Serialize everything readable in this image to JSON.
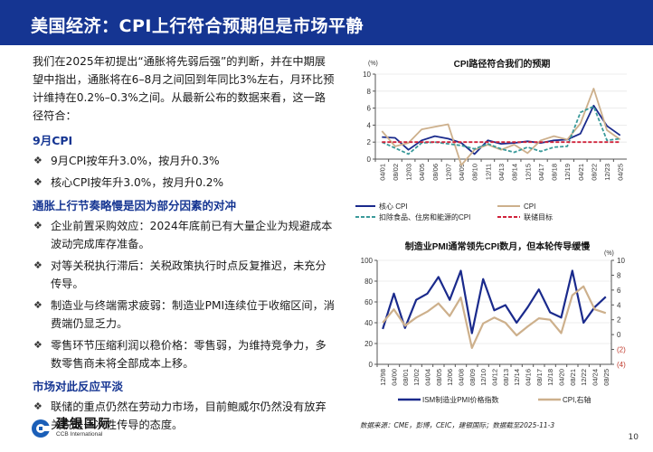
{
  "header": {
    "title": "美国经济：CPI上行符合预期但是市场平静",
    "bg_color": "#153592"
  },
  "left": {
    "intro": "我们在2025年初提出“通胀将先弱后强”的判断，并在中期展望中指出，通胀将在6–8月之间回到年同比3%左右，月环比预计维持在0.2%–0.3%之间。从最新公布的数据来看，这一路径符合：",
    "sections": [
      {
        "heading": "9月CPI",
        "bullets": [
          "9月CPI按年升3.0%，按月升0.3%",
          "核心CPI按年升3.0%，按月升0.2%"
        ]
      },
      {
        "heading": "通胀上行节奏略慢是因为部分因素的对冲",
        "bullets": [
          "企业前置采购效应：2024年底前已有大量企业为规避成本波动完成库存准备。",
          "对等关税执行滞后：关税政策执行时点反复推迟，未充分传导。",
          "制造业与终端需求疲弱：制造业PMI连续位于收缩区间，消费端仍显乏力。",
          "零售环节压缩利润以稳价格：零售弱，为维持竞争力，多数零售商未将全部成本上移。"
        ]
      },
      {
        "heading": "市场对此反应平淡",
        "bullets": [
          "联储的重点仍然在劳动力市场，目前鲍威尔仍然没有放弃关税是一次性传导的态度。"
        ]
      }
    ],
    "bullet_icon": "❖"
  },
  "logo": {
    "cn": "建银国际",
    "en": "CCB International",
    "icon": "ccb-logo-icon"
  },
  "footer": {
    "source": "数据来源：CME，彭博，CEIC，建银国际；数据截至2025-11-3",
    "page_number": "10"
  },
  "chart_data": [
    {
      "type": "line",
      "title": "CPI路径符合我们的预期",
      "ylabel": "(%)",
      "ylim": [
        0,
        10
      ],
      "yticks": [
        "0",
        "2",
        "4",
        "6",
        "8",
        "10"
      ],
      "categories": [
        "04/01",
        "08/02",
        "12/03",
        "04/05",
        "08/06",
        "12/07",
        "04/09",
        "08/10",
        "12/11",
        "04/13",
        "08/14",
        "12/15",
        "04/17",
        "08/18",
        "12/19",
        "04/21",
        "08/22",
        "12/23",
        "04/25"
      ],
      "grid": true,
      "legend_position": "bottom",
      "series": [
        {
          "name": "核心 CPI",
          "color": "#1a2a8c",
          "style": "solid",
          "values": [
            2.6,
            2.5,
            1.1,
            2.2,
            2.7,
            2.4,
            1.9,
            0.6,
            2.2,
            1.8,
            1.9,
            2.1,
            1.9,
            2.2,
            2.3,
            3.0,
            6.3,
            3.9,
            2.8
          ]
        },
        {
          "name": "CPI",
          "color": "#cdb08c",
          "style": "solid",
          "values": [
            3.3,
            1.5,
            1.9,
            3.5,
            3.8,
            4.1,
            -0.7,
            1.1,
            1.7,
            1.1,
            1.7,
            0.7,
            2.2,
            2.7,
            2.3,
            4.2,
            8.3,
            3.4,
            2.3
          ]
        },
        {
          "name": "扣除食品、住房和能源的CPI",
          "color": "#3a9a9a",
          "style": "dashed",
          "values": [
            2.0,
            1.3,
            0.6,
            1.9,
            2.0,
            1.8,
            1.6,
            1.2,
            1.8,
            1.2,
            0.8,
            1.4,
            0.9,
            1.4,
            1.5,
            5.5,
            6.2,
            2.2,
            2.4
          ]
        },
        {
          "name": "联储目标",
          "color": "#d0223a",
          "style": "dashed",
          "values": [
            2,
            2,
            2,
            2,
            2,
            2,
            2,
            2,
            2,
            2,
            2,
            2,
            2,
            2,
            2,
            2,
            2,
            2,
            2
          ]
        }
      ]
    },
    {
      "type": "line",
      "title": "制造业PMI通常领先CPI数月，但本轮传导缓慢",
      "ylim": [
        0,
        100
      ],
      "yticks": [
        "0",
        "20",
        "40",
        "60",
        "80",
        "100"
      ],
      "y2label": "(%)",
      "y2lim": [
        -4,
        10
      ],
      "y2ticks": [
        "(4)",
        "(2)",
        "0",
        "2",
        "4",
        "6",
        "8",
        "10"
      ],
      "categories": [
        "12/98",
        "04/00",
        "08/01",
        "12/02",
        "04/04",
        "08/05",
        "12/06",
        "04/08",
        "08/09",
        "12/10",
        "04/12",
        "08/13",
        "12/14",
        "04/16",
        "08/17",
        "12/18",
        "04/20",
        "08/21",
        "12/22",
        "04/24",
        "08/25"
      ],
      "grid": true,
      "legend_position": "bottom",
      "series": [
        {
          "name": "ISM制造业PMI价格指数",
          "axis": "left",
          "color": "#1a2a8c",
          "values": [
            34,
            68,
            35,
            62,
            68,
            84,
            62,
            90,
            30,
            82,
            52,
            57,
            40,
            55,
            72,
            50,
            45,
            90,
            40,
            55,
            65
          ]
        },
        {
          "name": "CPI,右轴",
          "axis": "right",
          "color": "#cdb08c",
          "values": [
            1.6,
            3.4,
            1.2,
            2.3,
            3.1,
            4.2,
            2.5,
            5.0,
            -1.8,
            1.5,
            2.3,
            1.6,
            -0.1,
            1.1,
            2.2,
            2.0,
            0.2,
            5.3,
            6.5,
            3.4,
            2.9
          ]
        }
      ]
    }
  ]
}
